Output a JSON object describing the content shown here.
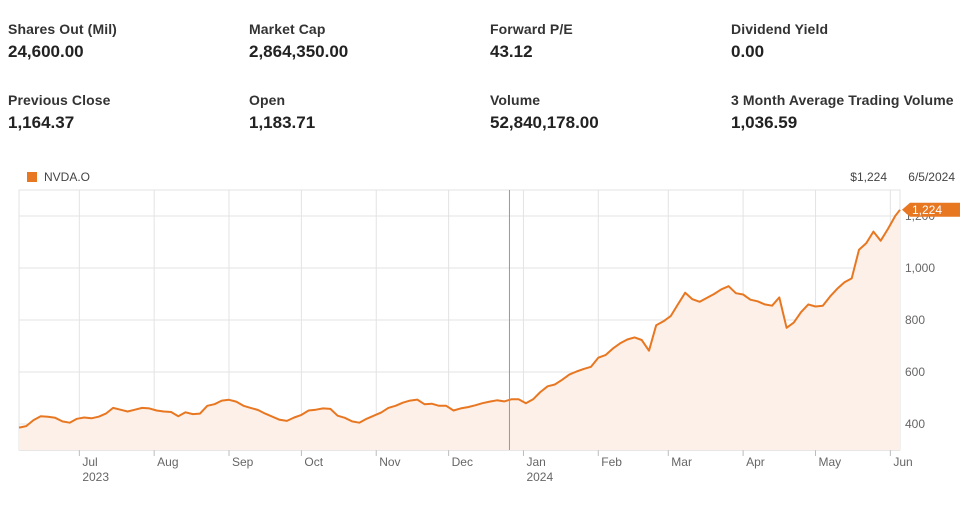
{
  "stats": [
    {
      "label": "Shares Out (Mil)",
      "value": "24,600.00"
    },
    {
      "label": "Market Cap",
      "value": "2,864,350.00"
    },
    {
      "label": "Forward P/E",
      "value": "43.12"
    },
    {
      "label": "Dividend Yield",
      "value": "0.00"
    },
    {
      "label": "Previous Close",
      "value": "1,164.37"
    },
    {
      "label": "Open",
      "value": "1,183.71"
    },
    {
      "label": "Volume",
      "value": "52,840,178.00"
    },
    {
      "label": "3 Month Average Trading Volume",
      "value": "1,036.59"
    }
  ],
  "chart_data": {
    "type": "area",
    "legend": [
      "NVDA.O"
    ],
    "header_price": "$1,224",
    "header_date": "6/5/2024",
    "last_value_label": "1,224",
    "ylim": [
      300,
      1300
    ],
    "yticks": [
      400,
      600,
      800,
      1000,
      1200
    ],
    "ytick_labels": [
      "400",
      "600",
      "800",
      "1,000",
      "1,200"
    ],
    "xlim": [
      "2023-06-06",
      "2024-06-05"
    ],
    "xticks": [
      {
        "date": "2023-07-01",
        "label": "Jul",
        "year": "2023"
      },
      {
        "date": "2023-08-01",
        "label": "Aug",
        "year": ""
      },
      {
        "date": "2023-09-01",
        "label": "Sep",
        "year": ""
      },
      {
        "date": "2023-10-01",
        "label": "Oct",
        "year": ""
      },
      {
        "date": "2023-11-01",
        "label": "Nov",
        "year": ""
      },
      {
        "date": "2023-12-01",
        "label": "Dec",
        "year": ""
      },
      {
        "date": "2024-01-01",
        "label": "Jan",
        "year": "2024"
      },
      {
        "date": "2024-02-01",
        "label": "Feb",
        "year": ""
      },
      {
        "date": "2024-03-01",
        "label": "Mar",
        "year": ""
      },
      {
        "date": "2024-04-01",
        "label": "Apr",
        "year": ""
      },
      {
        "date": "2024-05-01",
        "label": "May",
        "year": ""
      },
      {
        "date": "2024-06-01",
        "label": "Jun",
        "year": ""
      }
    ],
    "series": [
      {
        "name": "NVDA.O",
        "color": "#e87722",
        "fill": "#fdf0e8",
        "x": [
          "2023-06-06",
          "2023-06-09",
          "2023-06-12",
          "2023-06-15",
          "2023-06-18",
          "2023-06-21",
          "2023-06-24",
          "2023-06-27",
          "2023-06-30",
          "2023-07-03",
          "2023-07-06",
          "2023-07-09",
          "2023-07-12",
          "2023-07-15",
          "2023-07-18",
          "2023-07-21",
          "2023-07-24",
          "2023-07-27",
          "2023-07-30",
          "2023-08-02",
          "2023-08-05",
          "2023-08-08",
          "2023-08-11",
          "2023-08-14",
          "2023-08-17",
          "2023-08-20",
          "2023-08-23",
          "2023-08-26",
          "2023-08-29",
          "2023-09-01",
          "2023-09-04",
          "2023-09-07",
          "2023-09-10",
          "2023-09-13",
          "2023-09-16",
          "2023-09-19",
          "2023-09-22",
          "2023-09-25",
          "2023-09-28",
          "2023-10-01",
          "2023-10-04",
          "2023-10-07",
          "2023-10-10",
          "2023-10-13",
          "2023-10-16",
          "2023-10-19",
          "2023-10-22",
          "2023-10-25",
          "2023-10-28",
          "2023-10-31",
          "2023-11-03",
          "2023-11-06",
          "2023-11-09",
          "2023-11-12",
          "2023-11-15",
          "2023-11-18",
          "2023-11-21",
          "2023-11-24",
          "2023-11-27",
          "2023-11-30",
          "2023-12-03",
          "2023-12-06",
          "2023-12-09",
          "2023-12-12",
          "2023-12-15",
          "2023-12-18",
          "2023-12-21",
          "2023-12-24",
          "2023-12-27",
          "2023-12-30",
          "2024-01-02",
          "2024-01-05",
          "2024-01-08",
          "2024-01-11",
          "2024-01-14",
          "2024-01-17",
          "2024-01-20",
          "2024-01-23",
          "2024-01-26",
          "2024-01-29",
          "2024-02-01",
          "2024-02-04",
          "2024-02-07",
          "2024-02-10",
          "2024-02-13",
          "2024-02-16",
          "2024-02-19",
          "2024-02-22",
          "2024-02-25",
          "2024-02-28",
          "2024-03-02",
          "2024-03-05",
          "2024-03-08",
          "2024-03-11",
          "2024-03-14",
          "2024-03-17",
          "2024-03-20",
          "2024-03-23",
          "2024-03-26",
          "2024-03-29",
          "2024-04-01",
          "2024-04-04",
          "2024-04-07",
          "2024-04-10",
          "2024-04-13",
          "2024-04-16",
          "2024-04-19",
          "2024-04-22",
          "2024-04-25",
          "2024-04-28",
          "2024-05-01",
          "2024-05-04",
          "2024-05-07",
          "2024-05-10",
          "2024-05-13",
          "2024-05-16",
          "2024-05-19",
          "2024-05-22",
          "2024-05-25",
          "2024-05-28",
          "2024-05-31",
          "2024-06-03",
          "2024-06-05"
        ],
        "values": [
          386,
          392,
          415,
          430,
          428,
          424,
          410,
          405,
          420,
          425,
          422,
          428,
          440,
          462,
          455,
          448,
          455,
          462,
          460,
          452,
          448,
          446,
          430,
          445,
          438,
          440,
          470,
          476,
          490,
          493,
          486,
          470,
          462,
          454,
          440,
          428,
          416,
          412,
          425,
          435,
          452,
          455,
          460,
          458,
          432,
          424,
          410,
          405,
          420,
          432,
          444,
          462,
          470,
          482,
          490,
          494,
          476,
          478,
          470,
          470,
          452,
          460,
          465,
          472,
          480,
          486,
          491,
          487,
          495,
          495,
          480,
          495,
          523,
          545,
          552,
          570,
          590,
          602,
          612,
          620,
          655,
          665,
          690,
          710,
          725,
          733,
          723,
          682,
          780,
          795,
          815,
          860,
          905,
          880,
          870,
          885,
          900,
          918,
          930,
          903,
          898,
          878,
          872,
          860,
          855,
          887,
          770,
          790,
          830,
          860,
          852,
          855,
          890,
          920,
          945,
          960,
          1070,
          1095,
          1140,
          1105,
          1150,
          1200,
          1224
        ]
      }
    ]
  }
}
